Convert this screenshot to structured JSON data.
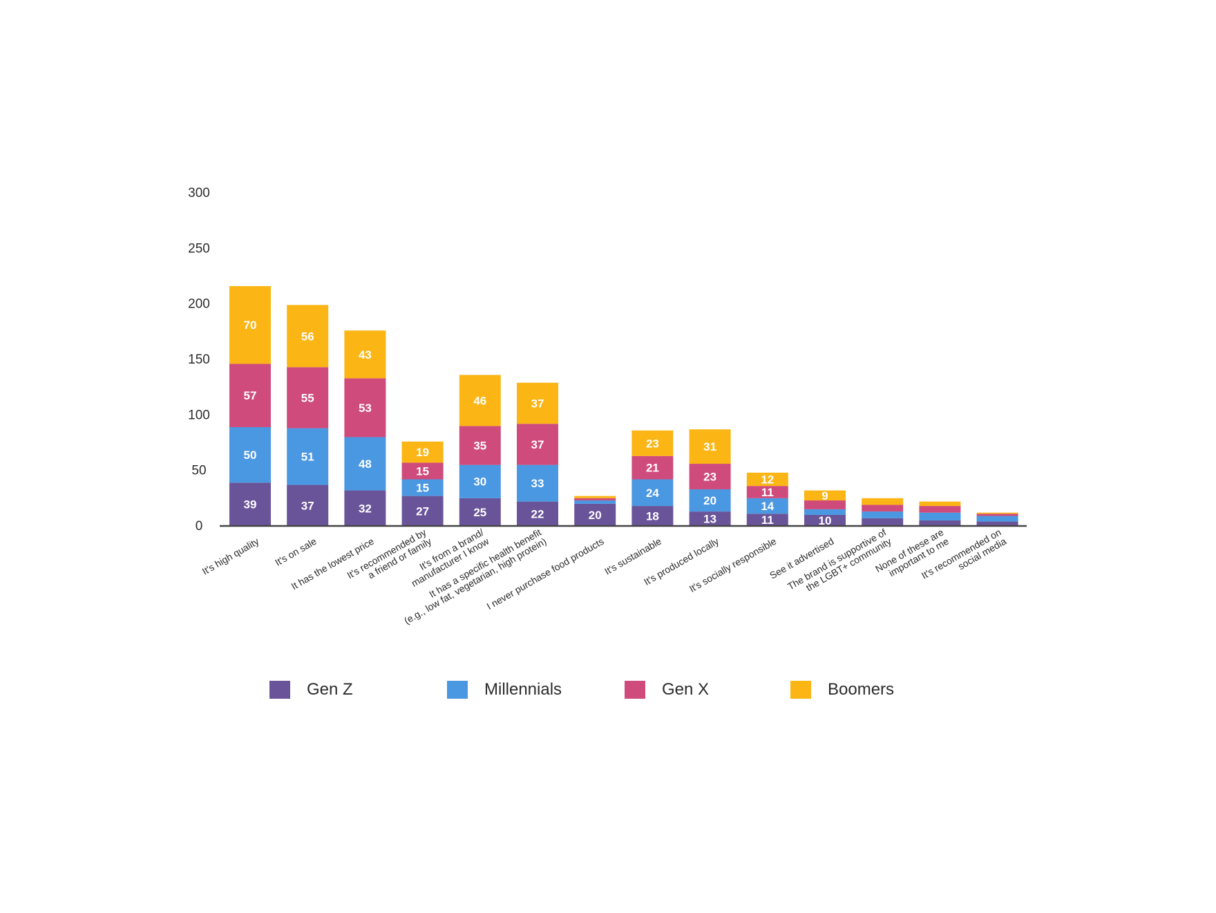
{
  "chart_data": {
    "type": "bar",
    "stacked": true,
    "title": "",
    "xlabel": "",
    "ylabel": "",
    "ylim": [
      0,
      300
    ],
    "yticks": [
      0,
      50,
      100,
      150,
      200,
      250,
      300
    ],
    "grid": false,
    "legend_position": "bottom",
    "categories": [
      "It's high quality",
      "It's on sale",
      "It has the lowest price",
      "It's recommended by\na friend or family",
      "It's from a brand/\nmanufacturer I know",
      "It has a specific health benefit\n(e.g., low fat, vegetarian, high protein)",
      "I never purchase food products",
      "It's sustainable",
      "It's produced locally",
      "It's socially responsible",
      "See it advertised",
      "The brand is supportive of\nthe LGBT+ community",
      "None of these are\nimportant to me",
      "It's recommended on\nsocial media"
    ],
    "series": [
      {
        "name": "Gen Z",
        "color": "#6a5499",
        "values": [
          39,
          37,
          32,
          27,
          25,
          22,
          20,
          18,
          13,
          11,
          10,
          7,
          5,
          4
        ],
        "labels": [
          "39",
          "37",
          "32",
          "27",
          "25",
          "22",
          "20",
          "18",
          "13",
          "11",
          "10",
          "",
          "",
          ""
        ]
      },
      {
        "name": "Millennials",
        "color": "#4a97e2",
        "values": [
          50,
          51,
          48,
          15,
          30,
          33,
          3,
          24,
          20,
          14,
          5,
          6,
          7,
          5
        ],
        "labels": [
          "50",
          "51",
          "48",
          "15",
          "30",
          "33",
          "",
          "24",
          "20",
          "14",
          "",
          "",
          "",
          ""
        ]
      },
      {
        "name": "Gen X",
        "color": "#cf4b7b",
        "values": [
          57,
          55,
          53,
          15,
          35,
          37,
          2,
          21,
          23,
          11,
          8,
          6,
          6,
          2
        ],
        "labels": [
          "57",
          "55",
          "53",
          "15",
          "35",
          "37",
          "",
          "21",
          "23",
          "11",
          "",
          "",
          "",
          ""
        ]
      },
      {
        "name": "Boomers",
        "color": "#fbb515",
        "values": [
          70,
          56,
          43,
          19,
          46,
          37,
          2,
          23,
          31,
          12,
          9,
          6,
          4,
          1
        ],
        "labels": [
          "70",
          "56",
          "43",
          "19",
          "46",
          "37",
          "",
          "23",
          "31",
          "12",
          "9",
          "",
          "",
          ""
        ]
      }
    ]
  }
}
